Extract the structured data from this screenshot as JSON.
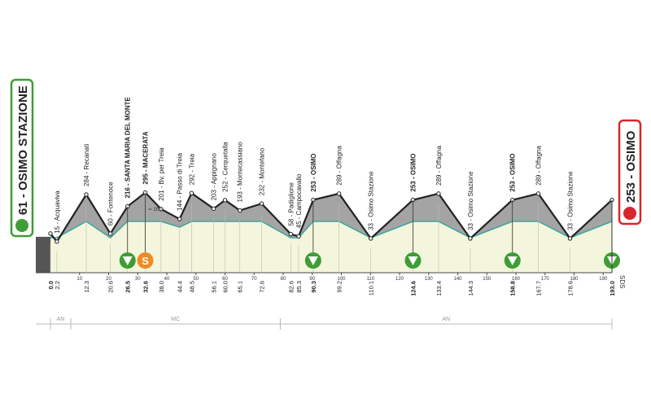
{
  "chart_data": {
    "type": "profile",
    "x": [
      0,
      2.2,
      12.3,
      20.6,
      26.5,
      32.6,
      38.0,
      44.4,
      48.5,
      56.1,
      60.0,
      65.1,
      72.6,
      82.6,
      85.3,
      90.3,
      99.2,
      110.1,
      124.6,
      133.4,
      144.3,
      158.8,
      167.7,
      178.6,
      193.0
    ],
    "x_labels": [
      "0.0",
      "2.2",
      "12.3",
      "20.6",
      "26.5",
      "32.6",
      "38.0",
      "44.4",
      "48.5",
      "56.1",
      "60.0",
      "65.1",
      "72.6",
      "82.6",
      "85.3",
      "90.3",
      "99.2",
      "110.1",
      "124.6",
      "133.4",
      "144.3",
      "158.8",
      "167.7",
      "178.6",
      "193.0"
    ],
    "values": [
      61,
      15,
      284,
      60,
      216,
      295,
      201,
      144,
      292,
      203,
      252,
      193,
      232,
      58,
      45,
      253,
      289,
      33,
      253,
      289,
      33,
      253,
      289,
      33,
      253
    ],
    "value_labels": [
      "61 - OSIMO STAZIONE",
      "15 - Acquaviva",
      "284 - Recanati",
      "60 - Fontenoce",
      "216 - SANTA MARIA DEL MONTE",
      "295 - MACERATA",
      "201 - Bv. per Treia",
      "144 - Passo di Treia",
      "292 - Treia",
      "203 - Appignano",
      "252 - Cerquetalla",
      "193 - Montecassiano",
      "232 - Montefano",
      "58 - Padiglione",
      "45 - Campocavallo",
      "253 - OSIMO",
      "289 - Offagna",
      "33 - Osimo Stazione",
      "253 - OSIMO",
      "289 - Offagna",
      "33 - Osimo Stazione",
      "253 - OSIMO",
      "289 - Offagna",
      "33 - Osimo Stazione",
      "253 - OSIMO"
    ],
    "xlim": [
      0,
      193
    ],
    "xticks": [
      10,
      20,
      30,
      40,
      50,
      60,
      70,
      80,
      90,
      100,
      110,
      120,
      130,
      140,
      150,
      160,
      170,
      180,
      190
    ],
    "ylim": [
      0,
      400
    ],
    "yticks": [
      200
    ],
    "sprint_points": [
      4,
      15,
      18,
      21,
      24
    ],
    "kom_points": [
      5
    ],
    "kom_label": "S",
    "zones": [
      {
        "label": "AN",
        "from": 0,
        "to": 7
      },
      {
        "label": "MC",
        "from": 7,
        "to": 79
      },
      {
        "label": "AN",
        "from": 79,
        "to": 193
      }
    ],
    "credit": "SDS",
    "profile_color": "#222222",
    "fill_color": "#a4a4a4",
    "ground_color": "#f3f6dc",
    "river_color": "#3aa6a0",
    "sprint_color": "#3f9d35",
    "kom_color": "#f08a24",
    "start_color": "#3f9d35",
    "finish_color": "#d6262c"
  }
}
